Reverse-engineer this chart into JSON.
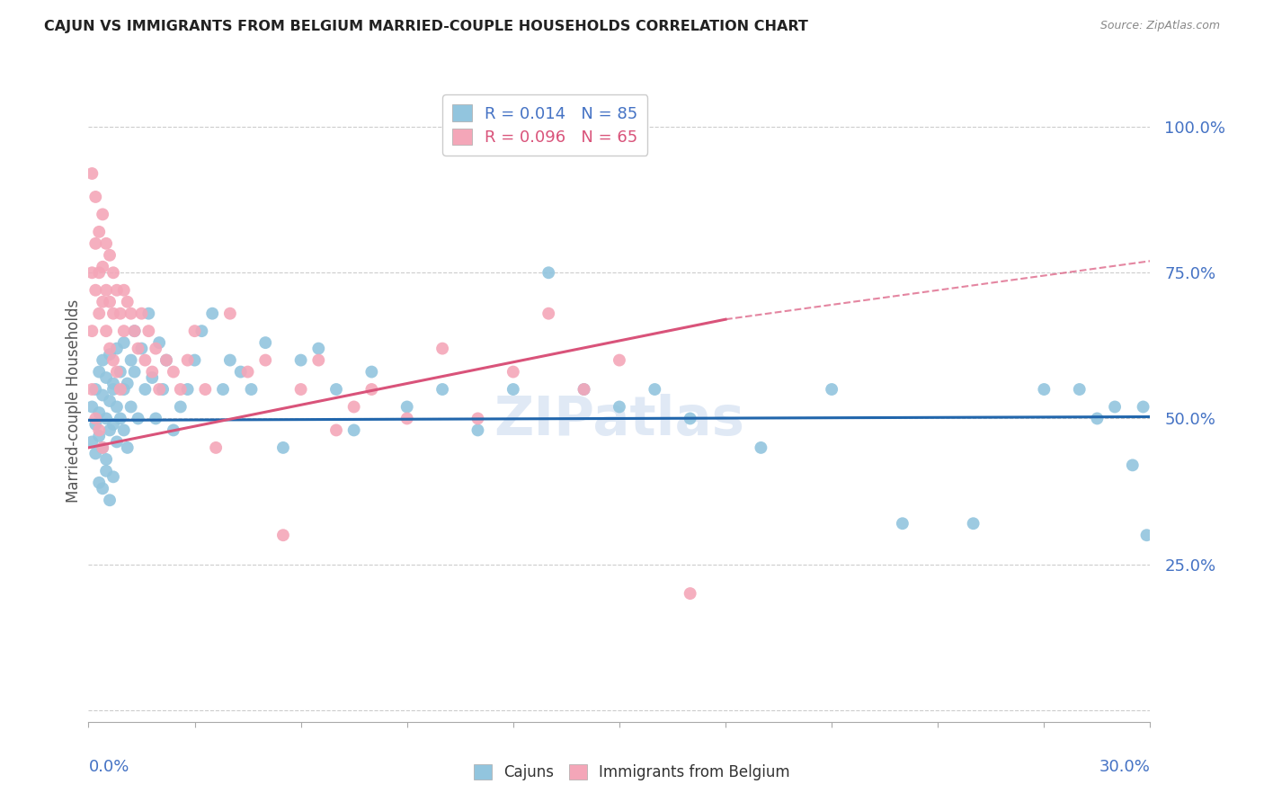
{
  "title": "CAJUN VS IMMIGRANTS FROM BELGIUM MARRIED-COUPLE HOUSEHOLDS CORRELATION CHART",
  "source": "Source: ZipAtlas.com",
  "ylabel": "Married-couple Households",
  "yticks": [
    0.0,
    0.25,
    0.5,
    0.75,
    1.0
  ],
  "ytick_labels": [
    "",
    "25.0%",
    "50.0%",
    "75.0%",
    "100.0%"
  ],
  "xlim": [
    0.0,
    0.3
  ],
  "ylim": [
    -0.02,
    1.08
  ],
  "cajun_R": 0.014,
  "cajun_N": 85,
  "belgium_R": 0.096,
  "belgium_N": 65,
  "cajun_color": "#92c5de",
  "belgium_color": "#f4a6b8",
  "cajun_line_color": "#2166ac",
  "belgium_line_color": "#d9537a",
  "watermark": "ZIPatlas",
  "cajun_x": [
    0.001,
    0.001,
    0.002,
    0.002,
    0.002,
    0.003,
    0.003,
    0.003,
    0.004,
    0.004,
    0.004,
    0.005,
    0.005,
    0.005,
    0.006,
    0.006,
    0.006,
    0.007,
    0.007,
    0.007,
    0.008,
    0.008,
    0.008,
    0.009,
    0.009,
    0.01,
    0.01,
    0.01,
    0.011,
    0.011,
    0.012,
    0.012,
    0.013,
    0.013,
    0.014,
    0.015,
    0.016,
    0.017,
    0.018,
    0.019,
    0.02,
    0.021,
    0.022,
    0.024,
    0.026,
    0.028,
    0.03,
    0.032,
    0.035,
    0.038,
    0.04,
    0.043,
    0.046,
    0.05,
    0.055,
    0.06,
    0.065,
    0.07,
    0.075,
    0.08,
    0.09,
    0.1,
    0.11,
    0.12,
    0.13,
    0.14,
    0.15,
    0.16,
    0.17,
    0.19,
    0.21,
    0.23,
    0.25,
    0.27,
    0.28,
    0.285,
    0.29,
    0.295,
    0.298,
    0.299,
    0.003,
    0.004,
    0.005,
    0.006,
    0.007
  ],
  "cajun_y": [
    0.52,
    0.46,
    0.55,
    0.49,
    0.44,
    0.58,
    0.51,
    0.47,
    0.54,
    0.6,
    0.45,
    0.57,
    0.5,
    0.43,
    0.53,
    0.48,
    0.61,
    0.55,
    0.49,
    0.56,
    0.52,
    0.46,
    0.62,
    0.5,
    0.58,
    0.63,
    0.55,
    0.48,
    0.56,
    0.45,
    0.6,
    0.52,
    0.65,
    0.58,
    0.5,
    0.62,
    0.55,
    0.68,
    0.57,
    0.5,
    0.63,
    0.55,
    0.6,
    0.48,
    0.52,
    0.55,
    0.6,
    0.65,
    0.68,
    0.55,
    0.6,
    0.58,
    0.55,
    0.63,
    0.45,
    0.6,
    0.62,
    0.55,
    0.48,
    0.58,
    0.52,
    0.55,
    0.48,
    0.55,
    0.75,
    0.55,
    0.52,
    0.55,
    0.5,
    0.45,
    0.55,
    0.32,
    0.32,
    0.55,
    0.55,
    0.5,
    0.52,
    0.42,
    0.52,
    0.3,
    0.39,
    0.38,
    0.41,
    0.36,
    0.4
  ],
  "belgium_x": [
    0.001,
    0.001,
    0.001,
    0.002,
    0.002,
    0.002,
    0.003,
    0.003,
    0.003,
    0.004,
    0.004,
    0.004,
    0.005,
    0.005,
    0.005,
    0.006,
    0.006,
    0.006,
    0.007,
    0.007,
    0.007,
    0.008,
    0.008,
    0.009,
    0.009,
    0.01,
    0.01,
    0.011,
    0.012,
    0.013,
    0.014,
    0.015,
    0.016,
    0.017,
    0.018,
    0.019,
    0.02,
    0.022,
    0.024,
    0.026,
    0.028,
    0.03,
    0.033,
    0.036,
    0.04,
    0.045,
    0.05,
    0.055,
    0.06,
    0.065,
    0.07,
    0.075,
    0.08,
    0.09,
    0.1,
    0.11,
    0.12,
    0.13,
    0.14,
    0.15,
    0.001,
    0.002,
    0.003,
    0.004,
    0.17
  ],
  "belgium_y": [
    0.92,
    0.75,
    0.65,
    0.88,
    0.8,
    0.72,
    0.82,
    0.75,
    0.68,
    0.85,
    0.76,
    0.7,
    0.8,
    0.72,
    0.65,
    0.78,
    0.7,
    0.62,
    0.75,
    0.68,
    0.6,
    0.72,
    0.58,
    0.68,
    0.55,
    0.72,
    0.65,
    0.7,
    0.68,
    0.65,
    0.62,
    0.68,
    0.6,
    0.65,
    0.58,
    0.62,
    0.55,
    0.6,
    0.58,
    0.55,
    0.6,
    0.65,
    0.55,
    0.45,
    0.68,
    0.58,
    0.6,
    0.3,
    0.55,
    0.6,
    0.48,
    0.52,
    0.55,
    0.5,
    0.62,
    0.5,
    0.58,
    0.68,
    0.55,
    0.6,
    0.55,
    0.5,
    0.48,
    0.45,
    0.2
  ]
}
